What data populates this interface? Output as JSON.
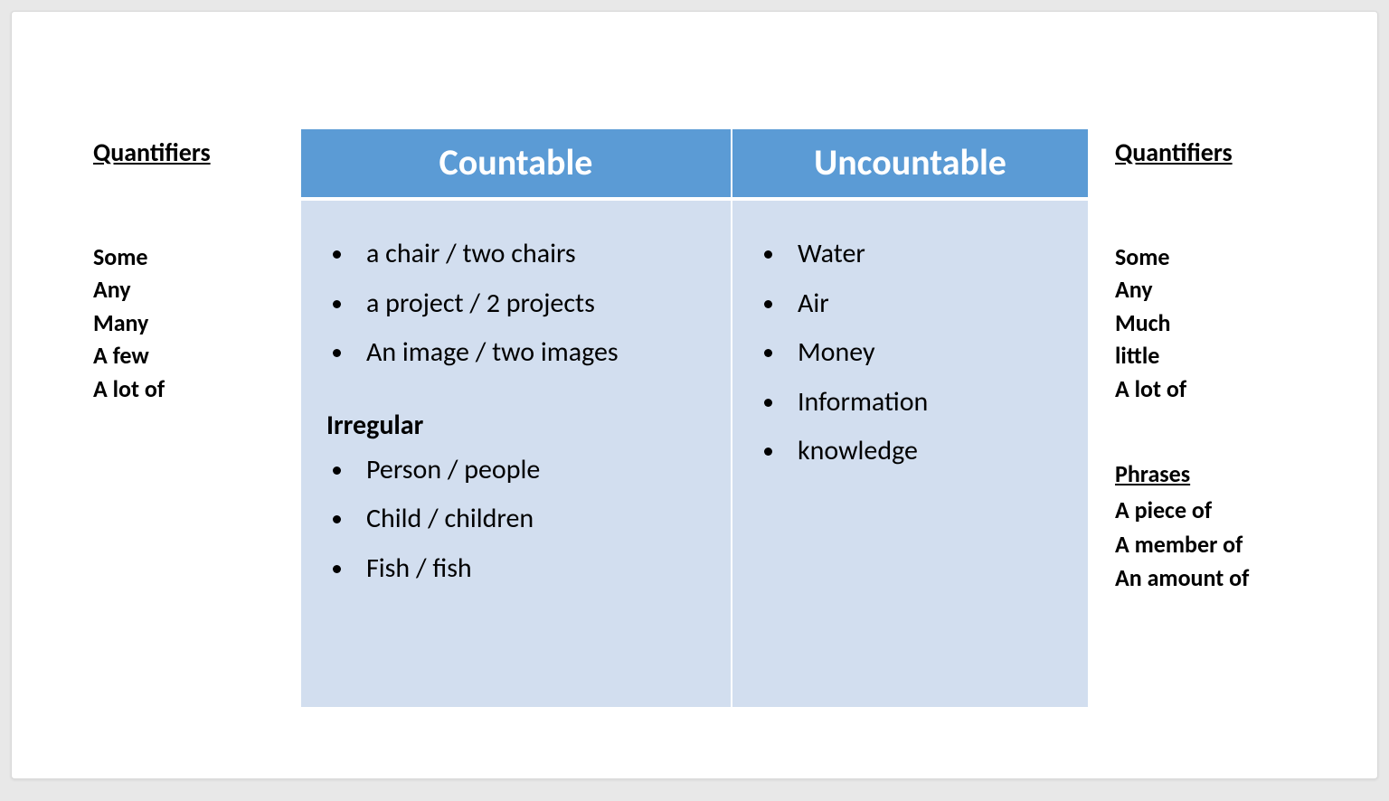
{
  "left_panel": {
    "heading": "Quantifiers",
    "items": [
      "Some",
      "Any",
      "Many",
      "A few",
      "A lot of"
    ]
  },
  "right_panel": {
    "heading": "Quantifiers",
    "items": [
      "Some",
      "Any",
      "Much",
      "little",
      "A lot of"
    ],
    "phrases_heading": "Phrases",
    "phrases": [
      "A piece of",
      "A member of",
      "An amount of"
    ]
  },
  "table": {
    "header_bg": "#5b9bd5",
    "header_fg": "#ffffff",
    "cell_bg": "#d2deef",
    "countable": {
      "header": "Countable",
      "items": [
        "a chair / two chairs",
        "a project / 2 projects",
        "An image / two images"
      ],
      "irregular_heading": "Irregular",
      "irregular_items": [
        "Person / people",
        "Child / children",
        "Fish / fish"
      ]
    },
    "uncountable": {
      "header": "Uncountable",
      "items": [
        "Water",
        "Air",
        "Money",
        "Information",
        "knowledge"
      ]
    }
  },
  "typography": {
    "heading_fontsize": 28,
    "list_fontsize": 26,
    "table_header_fontsize": 40,
    "cell_fontsize": 30
  },
  "colors": {
    "page_bg": "#ffffff",
    "outer_bg": "#e8e8e8",
    "text": "#000000"
  }
}
